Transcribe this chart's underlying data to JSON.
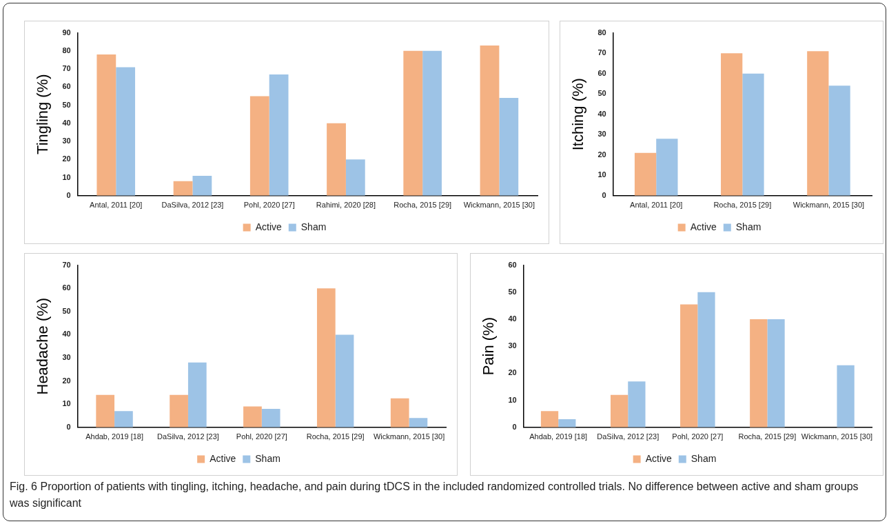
{
  "chart_data": [
    {
      "type": "bar",
      "ylabel": "Tingling (%)",
      "categories": [
        "Antal, 2011 [20]",
        "DaSilva, 2012 [23]",
        "Pohl, 2020 [27]",
        "Rahimi, 2020 [28]",
        "Rocha, 2015 [29]",
        "Wickmann, 2015 [30]"
      ],
      "series": [
        {
          "name": "Active",
          "color": "#f4b183",
          "values": [
            78,
            8,
            55,
            40,
            80,
            83
          ]
        },
        {
          "name": "Sham",
          "color": "#9dc3e6",
          "values": [
            71,
            11,
            67,
            20,
            80,
            54
          ]
        }
      ],
      "ylim": [
        0,
        90
      ],
      "yticks": [
        0,
        10,
        20,
        30,
        40,
        50,
        60,
        70,
        80,
        90
      ],
      "grid": false,
      "legend": "bottom"
    },
    {
      "type": "bar",
      "ylabel": "Itching (%)",
      "categories": [
        "Antal, 2011 [20]",
        "Rocha, 2015 [29]",
        "Wickmann, 2015 [30]"
      ],
      "series": [
        {
          "name": "Active",
          "color": "#f4b183",
          "values": [
            21,
            70,
            71
          ]
        },
        {
          "name": "Sham",
          "color": "#9dc3e6",
          "values": [
            28,
            60,
            54
          ]
        }
      ],
      "ylim": [
        0,
        80
      ],
      "yticks": [
        0,
        10,
        20,
        30,
        40,
        50,
        60,
        70,
        80
      ],
      "grid": false,
      "legend": "bottom"
    },
    {
      "type": "bar",
      "ylabel": "Headache (%)",
      "categories": [
        "Ahdab, 2019 [18]",
        "DaSilva, 2012 [23]",
        "Pohl, 2020 [27]",
        "Rocha, 2015 [29]",
        "Wickmann, 2015 [30]"
      ],
      "series": [
        {
          "name": "Active",
          "color": "#f4b183",
          "values": [
            14,
            14,
            9,
            60,
            12.5
          ]
        },
        {
          "name": "Sham",
          "color": "#9dc3e6",
          "values": [
            7,
            28,
            8,
            40,
            4
          ]
        }
      ],
      "ylim": [
        0,
        70
      ],
      "yticks": [
        0,
        10,
        20,
        30,
        40,
        50,
        60,
        70
      ],
      "grid": false,
      "legend": "bottom"
    },
    {
      "type": "bar",
      "ylabel": "Pain (%)",
      "categories": [
        "Ahdab, 2019 [18]",
        "DaSilva, 2012 [23]",
        "Pohl, 2020 [27]",
        "Rocha, 2015 [29]",
        "Wickmann, 2015 [30]"
      ],
      "series": [
        {
          "name": "Active",
          "color": "#f4b183",
          "values": [
            6,
            12,
            45.5,
            40,
            0
          ]
        },
        {
          "name": "Sham",
          "color": "#9dc3e6",
          "values": [
            3,
            17,
            50,
            40,
            23
          ]
        }
      ],
      "ylim": [
        0,
        60
      ],
      "yticks": [
        0,
        10,
        20,
        30,
        40,
        50,
        60
      ],
      "grid": false,
      "legend": "bottom",
      "annotations": [
        "Fig. 6 Proportion of patients with tingling, itching, headache, and pain during tDCS in the included randomized controlled trials. No difference between active and sham groups was significant"
      ]
    }
  ]
}
